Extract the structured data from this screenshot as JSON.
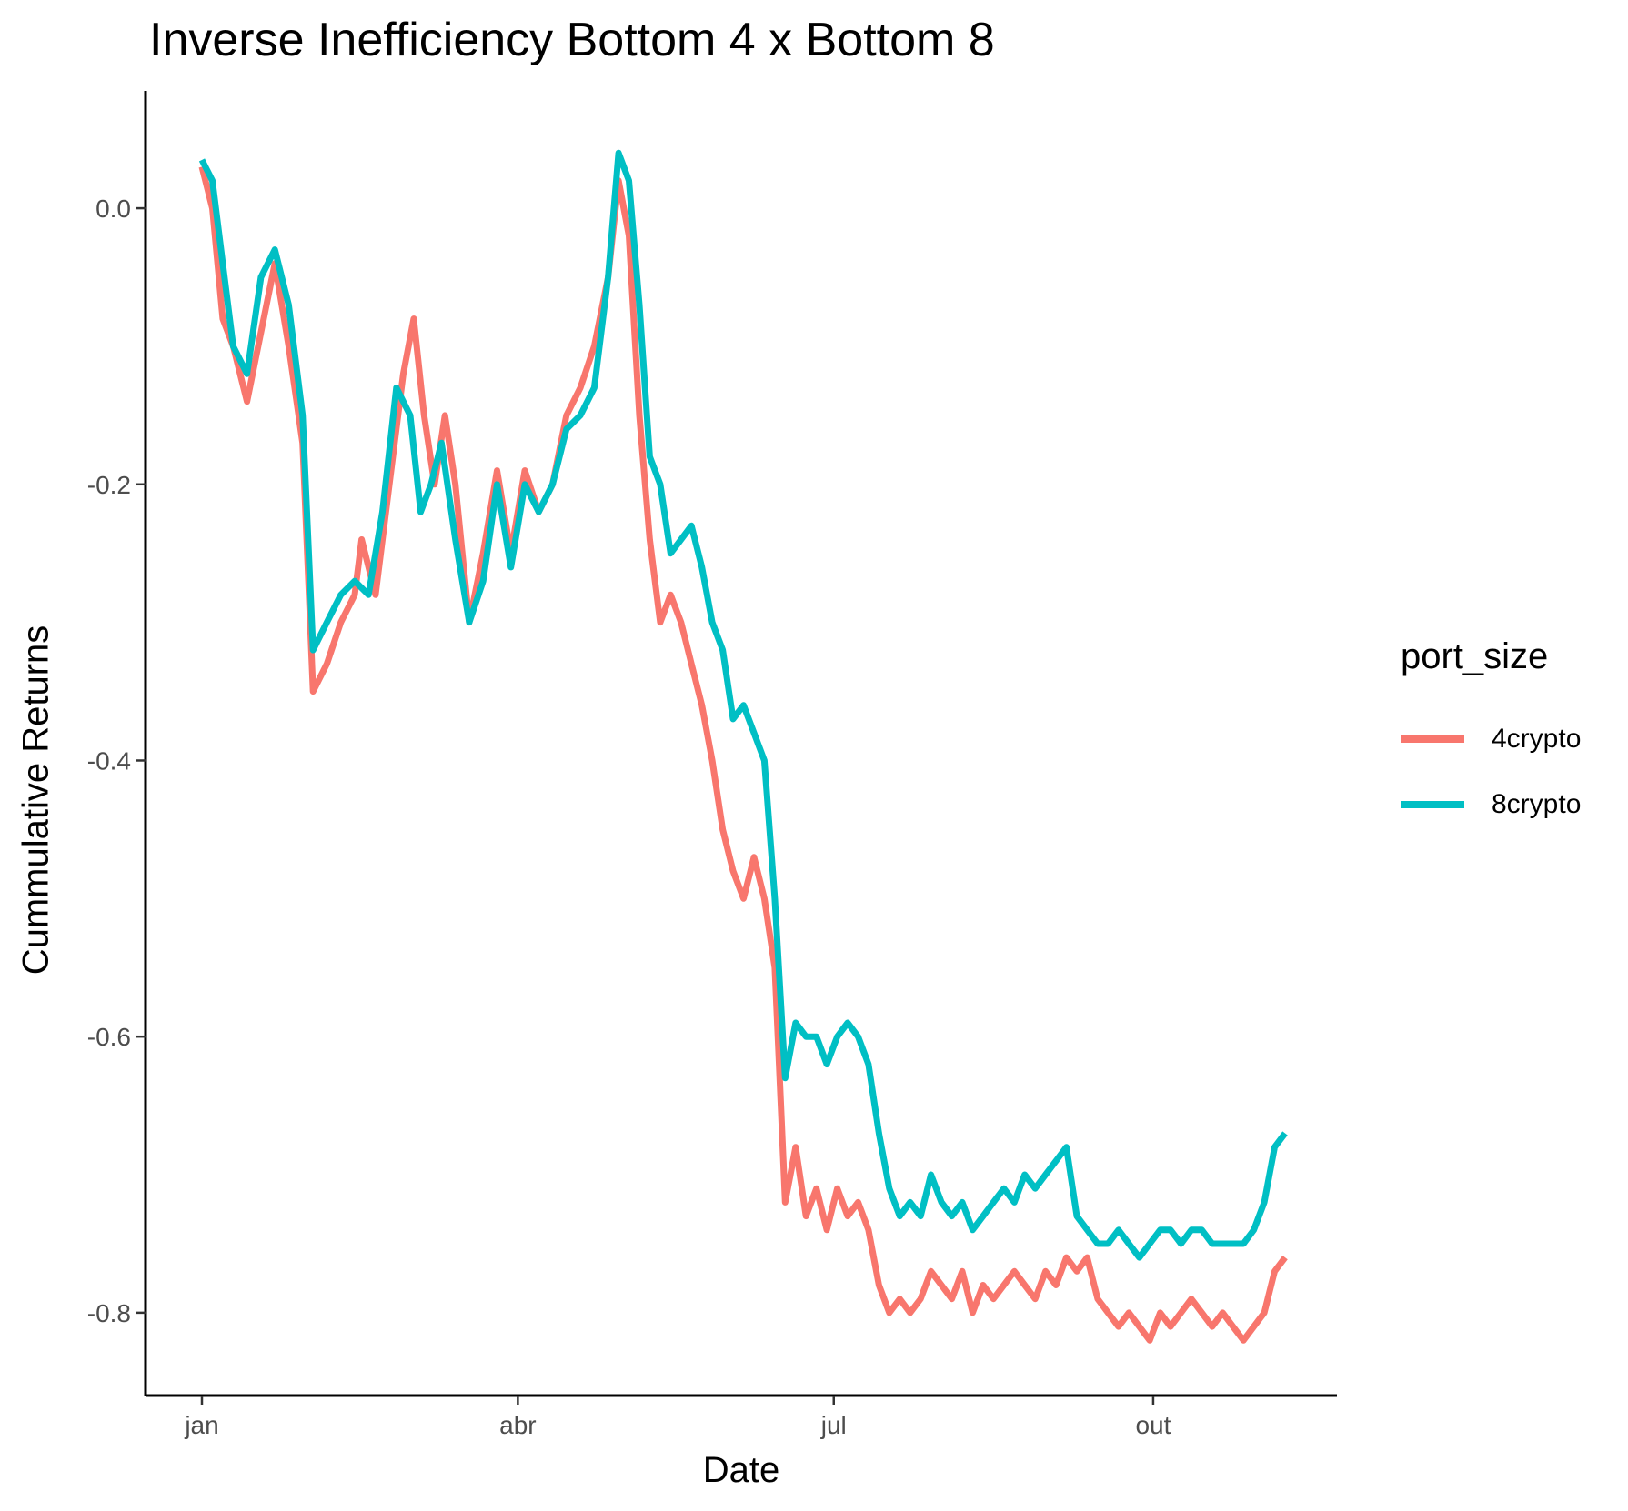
{
  "chart_data": {
    "type": "line",
    "title": "Inverse Inefficiency Bottom 4 x Bottom 8",
    "xlabel": "Date",
    "ylabel": "Cummulative Returns",
    "x_ticks": [
      "jan",
      "abr",
      "jul",
      "out"
    ],
    "y_ticks": [
      "0.0",
      "-0.2",
      "-0.4",
      "-0.6",
      "-0.8"
    ],
    "y_tick_values": [
      0.0,
      -0.2,
      -0.4,
      -0.6,
      -0.8
    ],
    "ylim": [
      -0.86,
      0.085
    ],
    "grid": false,
    "legend_title": "port_size",
    "legend_position": "right",
    "series": [
      {
        "name": "4crypto",
        "color": "#F8766D",
        "points": [
          [
            "01-01",
            0.03
          ],
          [
            "01-04",
            0.0
          ],
          [
            "01-07",
            -0.08
          ],
          [
            "01-10",
            -0.1
          ],
          [
            "01-14",
            -0.14
          ],
          [
            "01-18",
            -0.09
          ],
          [
            "01-22",
            -0.04
          ],
          [
            "01-26",
            -0.1
          ],
          [
            "01-30",
            -0.17
          ],
          [
            "02-02",
            -0.35
          ],
          [
            "02-06",
            -0.33
          ],
          [
            "02-10",
            -0.3
          ],
          [
            "02-14",
            -0.28
          ],
          [
            "02-16",
            -0.24
          ],
          [
            "02-20",
            -0.28
          ],
          [
            "02-24",
            -0.2
          ],
          [
            "02-28",
            -0.12
          ],
          [
            "03-02",
            -0.08
          ],
          [
            "03-05",
            -0.15
          ],
          [
            "03-08",
            -0.2
          ],
          [
            "03-11",
            -0.15
          ],
          [
            "03-14",
            -0.2
          ],
          [
            "03-18",
            -0.3
          ],
          [
            "03-22",
            -0.25
          ],
          [
            "03-26",
            -0.19
          ],
          [
            "03-30",
            -0.25
          ],
          [
            "04-03",
            -0.19
          ],
          [
            "04-07",
            -0.22
          ],
          [
            "04-11",
            -0.2
          ],
          [
            "04-15",
            -0.15
          ],
          [
            "04-19",
            -0.13
          ],
          [
            "04-23",
            -0.1
          ],
          [
            "04-27",
            -0.05
          ],
          [
            "04-30",
            0.02
          ],
          [
            "05-03",
            -0.02
          ],
          [
            "05-06",
            -0.15
          ],
          [
            "05-09",
            -0.24
          ],
          [
            "05-12",
            -0.3
          ],
          [
            "05-15",
            -0.28
          ],
          [
            "05-18",
            -0.3
          ],
          [
            "05-21",
            -0.33
          ],
          [
            "05-24",
            -0.36
          ],
          [
            "05-27",
            -0.4
          ],
          [
            "05-30",
            -0.45
          ],
          [
            "06-02",
            -0.48
          ],
          [
            "06-05",
            -0.5
          ],
          [
            "06-08",
            -0.47
          ],
          [
            "06-11",
            -0.5
          ],
          [
            "06-14",
            -0.55
          ],
          [
            "06-17",
            -0.72
          ],
          [
            "06-20",
            -0.68
          ],
          [
            "06-23",
            -0.73
          ],
          [
            "06-26",
            -0.71
          ],
          [
            "06-29",
            -0.74
          ],
          [
            "07-02",
            -0.71
          ],
          [
            "07-05",
            -0.73
          ],
          [
            "07-08",
            -0.72
          ],
          [
            "07-11",
            -0.74
          ],
          [
            "07-14",
            -0.78
          ],
          [
            "07-17",
            -0.8
          ],
          [
            "07-20",
            -0.79
          ],
          [
            "07-23",
            -0.8
          ],
          [
            "07-26",
            -0.79
          ],
          [
            "07-29",
            -0.77
          ],
          [
            "08-01",
            -0.78
          ],
          [
            "08-04",
            -0.79
          ],
          [
            "08-07",
            -0.77
          ],
          [
            "08-10",
            -0.8
          ],
          [
            "08-13",
            -0.78
          ],
          [
            "08-16",
            -0.79
          ],
          [
            "08-19",
            -0.78
          ],
          [
            "08-22",
            -0.77
          ],
          [
            "08-25",
            -0.78
          ],
          [
            "08-28",
            -0.79
          ],
          [
            "08-31",
            -0.77
          ],
          [
            "09-03",
            -0.78
          ],
          [
            "09-06",
            -0.76
          ],
          [
            "09-09",
            -0.77
          ],
          [
            "09-12",
            -0.76
          ],
          [
            "09-15",
            -0.79
          ],
          [
            "09-18",
            -0.8
          ],
          [
            "09-21",
            -0.81
          ],
          [
            "09-24",
            -0.8
          ],
          [
            "09-27",
            -0.81
          ],
          [
            "09-30",
            -0.82
          ],
          [
            "10-03",
            -0.8
          ],
          [
            "10-06",
            -0.81
          ],
          [
            "10-09",
            -0.8
          ],
          [
            "10-12",
            -0.79
          ],
          [
            "10-15",
            -0.8
          ],
          [
            "10-18",
            -0.81
          ],
          [
            "10-21",
            -0.8
          ],
          [
            "10-24",
            -0.81
          ],
          [
            "10-27",
            -0.82
          ],
          [
            "10-30",
            -0.81
          ],
          [
            "11-02",
            -0.8
          ],
          [
            "11-05",
            -0.77
          ],
          [
            "11-08",
            -0.76
          ]
        ]
      },
      {
        "name": "8crypto",
        "color": "#00BFC4",
        "points": [
          [
            "01-01",
            0.035
          ],
          [
            "01-04",
            0.02
          ],
          [
            "01-07",
            -0.04
          ],
          [
            "01-10",
            -0.1
          ],
          [
            "01-14",
            -0.12
          ],
          [
            "01-18",
            -0.05
          ],
          [
            "01-22",
            -0.03
          ],
          [
            "01-26",
            -0.07
          ],
          [
            "01-30",
            -0.15
          ],
          [
            "02-02",
            -0.32
          ],
          [
            "02-06",
            -0.3
          ],
          [
            "02-10",
            -0.28
          ],
          [
            "02-14",
            -0.27
          ],
          [
            "02-18",
            -0.28
          ],
          [
            "02-22",
            -0.22
          ],
          [
            "02-26",
            -0.13
          ],
          [
            "03-01",
            -0.15
          ],
          [
            "03-04",
            -0.22
          ],
          [
            "03-07",
            -0.2
          ],
          [
            "03-10",
            -0.17
          ],
          [
            "03-14",
            -0.24
          ],
          [
            "03-18",
            -0.3
          ],
          [
            "03-22",
            -0.27
          ],
          [
            "03-26",
            -0.2
          ],
          [
            "03-30",
            -0.26
          ],
          [
            "04-03",
            -0.2
          ],
          [
            "04-07",
            -0.22
          ],
          [
            "04-11",
            -0.2
          ],
          [
            "04-15",
            -0.16
          ],
          [
            "04-19",
            -0.15
          ],
          [
            "04-23",
            -0.13
          ],
          [
            "04-27",
            -0.05
          ],
          [
            "04-30",
            0.04
          ],
          [
            "05-03",
            0.02
          ],
          [
            "05-06",
            -0.07
          ],
          [
            "05-09",
            -0.18
          ],
          [
            "05-12",
            -0.2
          ],
          [
            "05-15",
            -0.25
          ],
          [
            "05-18",
            -0.24
          ],
          [
            "05-21",
            -0.23
          ],
          [
            "05-24",
            -0.26
          ],
          [
            "05-27",
            -0.3
          ],
          [
            "05-30",
            -0.32
          ],
          [
            "06-02",
            -0.37
          ],
          [
            "06-05",
            -0.36
          ],
          [
            "06-08",
            -0.38
          ],
          [
            "06-11",
            -0.4
          ],
          [
            "06-14",
            -0.5
          ],
          [
            "06-17",
            -0.63
          ],
          [
            "06-20",
            -0.59
          ],
          [
            "06-23",
            -0.6
          ],
          [
            "06-26",
            -0.6
          ],
          [
            "06-29",
            -0.62
          ],
          [
            "07-02",
            -0.6
          ],
          [
            "07-05",
            -0.59
          ],
          [
            "07-08",
            -0.6
          ],
          [
            "07-11",
            -0.62
          ],
          [
            "07-14",
            -0.67
          ],
          [
            "07-17",
            -0.71
          ],
          [
            "07-20",
            -0.73
          ],
          [
            "07-23",
            -0.72
          ],
          [
            "07-26",
            -0.73
          ],
          [
            "07-29",
            -0.7
          ],
          [
            "08-01",
            -0.72
          ],
          [
            "08-04",
            -0.73
          ],
          [
            "08-07",
            -0.72
          ],
          [
            "08-10",
            -0.74
          ],
          [
            "08-13",
            -0.73
          ],
          [
            "08-16",
            -0.72
          ],
          [
            "08-19",
            -0.71
          ],
          [
            "08-22",
            -0.72
          ],
          [
            "08-25",
            -0.7
          ],
          [
            "08-28",
            -0.71
          ],
          [
            "08-31",
            -0.7
          ],
          [
            "09-03",
            -0.69
          ],
          [
            "09-06",
            -0.68
          ],
          [
            "09-09",
            -0.73
          ],
          [
            "09-12",
            -0.74
          ],
          [
            "09-15",
            -0.75
          ],
          [
            "09-18",
            -0.75
          ],
          [
            "09-21",
            -0.74
          ],
          [
            "09-24",
            -0.75
          ],
          [
            "09-27",
            -0.76
          ],
          [
            "09-30",
            -0.75
          ],
          [
            "10-03",
            -0.74
          ],
          [
            "10-06",
            -0.74
          ],
          [
            "10-09",
            -0.75
          ],
          [
            "10-12",
            -0.74
          ],
          [
            "10-15",
            -0.74
          ],
          [
            "10-18",
            -0.75
          ],
          [
            "10-21",
            -0.75
          ],
          [
            "10-24",
            -0.75
          ],
          [
            "10-27",
            -0.75
          ],
          [
            "10-30",
            -0.74
          ],
          [
            "11-02",
            -0.72
          ],
          [
            "11-05",
            -0.68
          ],
          [
            "11-08",
            -0.67
          ]
        ]
      }
    ]
  }
}
